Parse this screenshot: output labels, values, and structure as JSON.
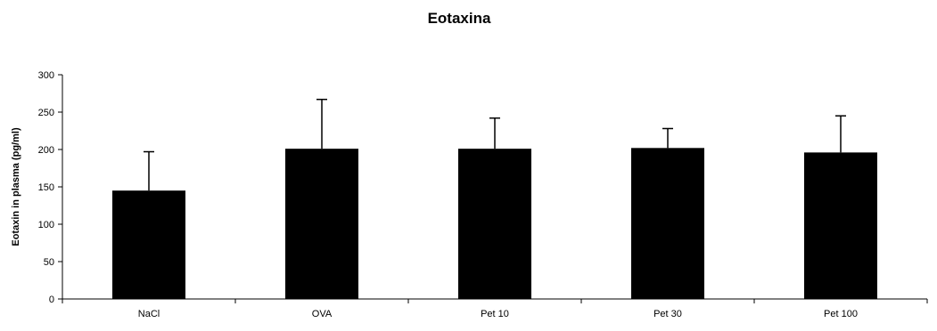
{
  "chart_data": {
    "type": "bar",
    "title": "Eotaxina",
    "xlabel": "",
    "ylabel": "Eotaxin in plasma (pg/ml)",
    "categories": [
      "NaCl",
      "OVA",
      "Pet 10",
      "Pet 30",
      "Pet 100"
    ],
    "values": [
      145,
      201,
      201,
      202,
      196
    ],
    "error_upper": [
      52,
      66,
      41,
      26,
      49
    ],
    "ylim": [
      0,
      300
    ],
    "yticks": [
      0,
      50,
      100,
      150,
      200,
      250,
      300
    ],
    "grid": false,
    "legend": "none",
    "bar_color": "#000000"
  }
}
